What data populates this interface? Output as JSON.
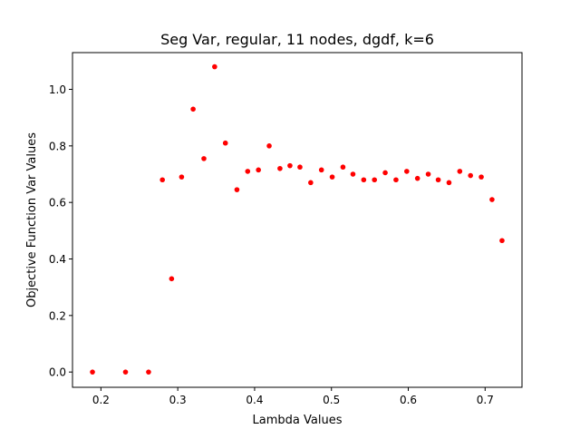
{
  "chart_data": {
    "type": "scatter",
    "title": "Seg Var, regular, 11 nodes, dgdf, k=6",
    "xlabel": "Lambda Values",
    "ylabel": "Objective Function Var Values",
    "xlim": [
      0.163,
      0.748
    ],
    "ylim": [
      -0.054,
      1.13
    ],
    "xticks": [
      0.2,
      0.3,
      0.4,
      0.5,
      0.6,
      0.7
    ],
    "xtick_labels": [
      "0.2",
      "0.3",
      "0.4",
      "0.5",
      "0.6",
      "0.7"
    ],
    "yticks": [
      0.0,
      0.2,
      0.4,
      0.6,
      0.8,
      1.0
    ],
    "ytick_labels": [
      "0.0",
      "0.2",
      "0.4",
      "0.6",
      "0.8",
      "1.0"
    ],
    "grid": false,
    "marker_color": "#ff0000",
    "points": [
      {
        "x": 0.189,
        "y": 0.0
      },
      {
        "x": 0.232,
        "y": 0.0
      },
      {
        "x": 0.262,
        "y": 0.0
      },
      {
        "x": 0.28,
        "y": 0.68
      },
      {
        "x": 0.292,
        "y": 0.33
      },
      {
        "x": 0.305,
        "y": 0.69
      },
      {
        "x": 0.32,
        "y": 0.93
      },
      {
        "x": 0.334,
        "y": 0.755
      },
      {
        "x": 0.348,
        "y": 1.08
      },
      {
        "x": 0.362,
        "y": 0.81
      },
      {
        "x": 0.377,
        "y": 0.645
      },
      {
        "x": 0.391,
        "y": 0.71
      },
      {
        "x": 0.405,
        "y": 0.715
      },
      {
        "x": 0.419,
        "y": 0.8
      },
      {
        "x": 0.433,
        "y": 0.72
      },
      {
        "x": 0.446,
        "y": 0.73
      },
      {
        "x": 0.459,
        "y": 0.725
      },
      {
        "x": 0.473,
        "y": 0.67
      },
      {
        "x": 0.487,
        "y": 0.715
      },
      {
        "x": 0.501,
        "y": 0.69
      },
      {
        "x": 0.515,
        "y": 0.725
      },
      {
        "x": 0.528,
        "y": 0.7
      },
      {
        "x": 0.542,
        "y": 0.68
      },
      {
        "x": 0.556,
        "y": 0.68
      },
      {
        "x": 0.57,
        "y": 0.705
      },
      {
        "x": 0.584,
        "y": 0.68
      },
      {
        "x": 0.598,
        "y": 0.71
      },
      {
        "x": 0.612,
        "y": 0.685
      },
      {
        "x": 0.626,
        "y": 0.7
      },
      {
        "x": 0.639,
        "y": 0.68
      },
      {
        "x": 0.653,
        "y": 0.67
      },
      {
        "x": 0.667,
        "y": 0.71
      },
      {
        "x": 0.681,
        "y": 0.695
      },
      {
        "x": 0.695,
        "y": 0.69
      },
      {
        "x": 0.709,
        "y": 0.61
      },
      {
        "x": 0.722,
        "y": 0.465
      }
    ]
  }
}
